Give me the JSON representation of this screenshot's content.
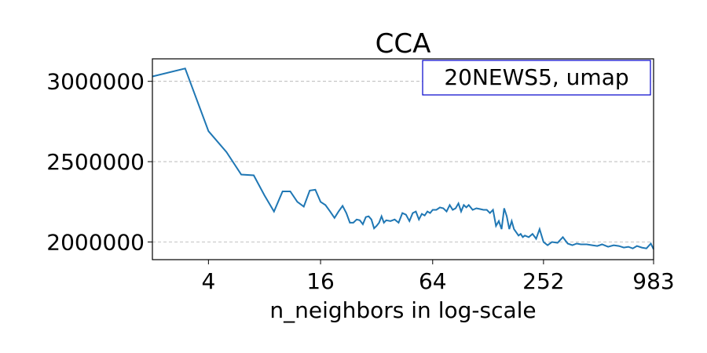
{
  "chart_data": {
    "type": "line",
    "title": "CCA",
    "xlabel": "n_neighbors in log-scale",
    "ylabel": "",
    "x_scale": "log2",
    "xlim": [
      2,
      983
    ],
    "ylim": [
      1890000,
      3140000
    ],
    "x_ticks": [
      4,
      16,
      64,
      252,
      983
    ],
    "x_tick_labels": [
      "4",
      "16",
      "64",
      "252",
      "983"
    ],
    "y_ticks": [
      2000000,
      2500000,
      3000000
    ],
    "y_tick_labels": [
      "2000000",
      "2500000",
      "3000000"
    ],
    "grid": "horizontal dashed",
    "legend_position": "top-right",
    "annotation": "20NEWS5, umap",
    "series": [
      {
        "color": "#1f77b4",
        "x": [
          2,
          3,
          4,
          5,
          6,
          7,
          8,
          9,
          10,
          11,
          12,
          13,
          14,
          15,
          16,
          17,
          18,
          19,
          20,
          21,
          22,
          23,
          24,
          25,
          26,
          27,
          28,
          29,
          30,
          31,
          32,
          33,
          34,
          35,
          36,
          38,
          40,
          42,
          44,
          46,
          48,
          50,
          52,
          54,
          56,
          58,
          60,
          62,
          64,
          67,
          70,
          73,
          76,
          79,
          82,
          85,
          88,
          91,
          94,
          97,
          100,
          105,
          110,
          115,
          120,
          125,
          130,
          135,
          140,
          145,
          150,
          155,
          160,
          165,
          170,
          175,
          180,
          185,
          190,
          195,
          200,
          210,
          220,
          230,
          240,
          252,
          265,
          280,
          300,
          320,
          340,
          360,
          380,
          400,
          430,
          460,
          490,
          520,
          560,
          600,
          640,
          680,
          720,
          760,
          800,
          850,
          900,
          950,
          983
        ],
        "y": [
          3030000,
          3080000,
          2690000,
          2560000,
          2420000,
          2415000,
          2290000,
          2190000,
          2315000,
          2315000,
          2250000,
          2220000,
          2320000,
          2325000,
          2250000,
          2230000,
          2190000,
          2150000,
          2190000,
          2225000,
          2180000,
          2120000,
          2120000,
          2140000,
          2135000,
          2110000,
          2155000,
          2160000,
          2140000,
          2085000,
          2100000,
          2120000,
          2160000,
          2120000,
          2135000,
          2130000,
          2140000,
          2120000,
          2180000,
          2170000,
          2130000,
          2180000,
          2190000,
          2140000,
          2175000,
          2165000,
          2190000,
          2180000,
          2200000,
          2200000,
          2215000,
          2210000,
          2190000,
          2230000,
          2200000,
          2210000,
          2240000,
          2190000,
          2230000,
          2215000,
          2230000,
          2200000,
          2210000,
          2205000,
          2200000,
          2200000,
          2180000,
          2200000,
          2100000,
          2130000,
          2080000,
          2210000,
          2160000,
          2080000,
          2130000,
          2080000,
          2060000,
          2040000,
          2050000,
          2030000,
          2040000,
          2030000,
          2050000,
          2020000,
          2080000,
          2000000,
          1980000,
          2000000,
          1995000,
          2030000,
          1990000,
          1980000,
          1990000,
          1985000,
          1985000,
          1980000,
          1975000,
          1985000,
          1970000,
          1980000,
          1975000,
          1965000,
          1970000,
          1960000,
          1975000,
          1965000,
          1960000,
          1990000,
          1955000
        ]
      }
    ]
  }
}
